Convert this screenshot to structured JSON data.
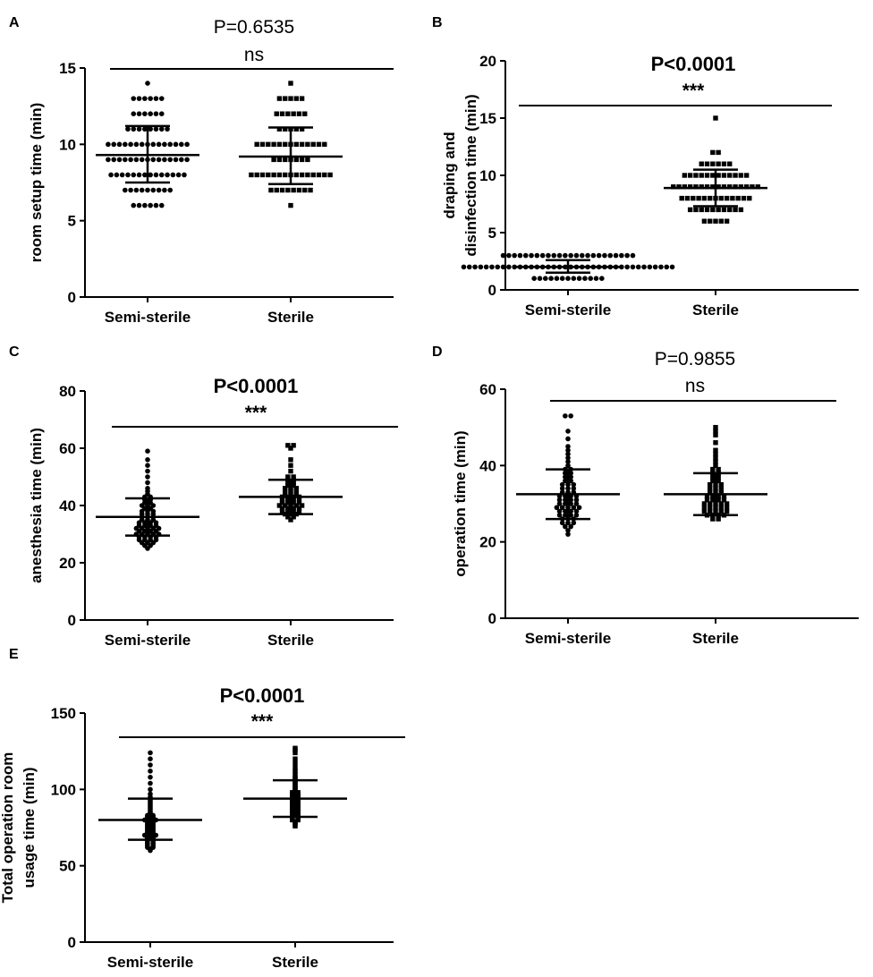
{
  "chart_data": [
    {
      "type": "scatter",
      "panel": "A",
      "ylabel_lines": [
        "room setup time (min)"
      ],
      "ylim": [
        0,
        15
      ],
      "yticks": [
        "0",
        "5",
        "10",
        "15"
      ],
      "categories": [
        "Semi-sterile",
        "Sterile"
      ],
      "p_value": "P=0.6535",
      "significance": "ns",
      "bold_annotation": false,
      "groups": [
        {
          "name": "Semi-sterile",
          "marker": "circle",
          "mean": 9.3,
          "sd_low": 7.5,
          "sd_high": 11.2,
          "values": [
            6,
            6,
            6,
            6,
            6,
            6,
            7,
            7,
            7,
            7,
            7,
            7,
            7,
            7,
            7,
            8,
            8,
            8,
            8,
            8,
            8,
            8,
            8,
            8,
            8,
            8,
            8,
            8,
            8,
            9,
            9,
            9,
            9,
            9,
            9,
            9,
            9,
            9,
            9,
            9,
            9,
            9,
            9,
            9,
            10,
            10,
            10,
            10,
            10,
            10,
            10,
            10,
            10,
            10,
            10,
            10,
            10,
            10,
            10,
            11,
            11,
            11,
            11,
            11,
            11,
            11,
            11,
            12,
            12,
            12,
            12,
            12,
            12,
            13,
            13,
            13,
            13,
            13,
            13,
            14
          ]
        },
        {
          "name": "Sterile",
          "marker": "square",
          "mean": 9.2,
          "sd_low": 7.4,
          "sd_high": 11.1,
          "values": [
            6,
            7,
            7,
            7,
            7,
            7,
            7,
            7,
            7,
            8,
            8,
            8,
            8,
            8,
            8,
            8,
            8,
            8,
            8,
            8,
            8,
            8,
            8,
            8,
            9,
            9,
            9,
            9,
            9,
            9,
            9,
            10,
            10,
            10,
            10,
            10,
            10,
            10,
            10,
            10,
            10,
            10,
            10,
            10,
            11,
            11,
            11,
            11,
            11,
            12,
            12,
            12,
            12,
            12,
            12,
            13,
            13,
            13,
            13,
            13,
            14
          ]
        }
      ]
    },
    {
      "type": "scatter",
      "panel": "B",
      "ylabel_lines": [
        "draping and",
        "disinfection time (min)"
      ],
      "ylim": [
        0,
        20
      ],
      "yticks": [
        "0",
        "5",
        "10",
        "15",
        "20"
      ],
      "categories": [
        "Semi-sterile",
        "Sterile"
      ],
      "p_value": "P<0.0001",
      "significance": "***",
      "bold_annotation": true,
      "groups": [
        {
          "name": "Semi-sterile",
          "marker": "circle",
          "mean": 2.0,
          "sd_low": 1.5,
          "sd_high": 2.6,
          "values": [
            1,
            1,
            1,
            1,
            1,
            1,
            1,
            1,
            1,
            1,
            1,
            1,
            1,
            2,
            2,
            2,
            2,
            2,
            2,
            2,
            2,
            2,
            2,
            2,
            2,
            2,
            2,
            2,
            2,
            2,
            2,
            2,
            2,
            2,
            2,
            2,
            2,
            2,
            2,
            2,
            2,
            2,
            2,
            2,
            2,
            2,
            2,
            2,
            2,
            2,
            2,
            3,
            3,
            3,
            3,
            3,
            3,
            3,
            3,
            3,
            3,
            3,
            3,
            3,
            3,
            3,
            3,
            3,
            3,
            3,
            3,
            3,
            3,
            3,
            3
          ]
        },
        {
          "name": "Sterile",
          "marker": "square",
          "mean": 8.9,
          "sd_low": 7.3,
          "sd_high": 10.5,
          "values": [
            6,
            6,
            6,
            6,
            6,
            7,
            7,
            7,
            7,
            7,
            7,
            7,
            7,
            7,
            7,
            8,
            8,
            8,
            8,
            8,
            8,
            8,
            8,
            8,
            8,
            8,
            8,
            8,
            9,
            9,
            9,
            9,
            9,
            9,
            9,
            9,
            9,
            9,
            9,
            9,
            9,
            9,
            9,
            9,
            10,
            10,
            10,
            10,
            10,
            10,
            10,
            10,
            10,
            10,
            10,
            10,
            11,
            11,
            11,
            11,
            11,
            11,
            12,
            12,
            15
          ]
        }
      ]
    },
    {
      "type": "scatter",
      "panel": "C",
      "ylabel_lines": [
        "anesthesia time (min)"
      ],
      "ylim": [
        0,
        80
      ],
      "yticks": [
        "0",
        "20",
        "40",
        "60",
        "80"
      ],
      "categories": [
        "Semi-sterile",
        "Sterile"
      ],
      "p_value": "P<0.0001",
      "significance": "***",
      "bold_annotation": true,
      "groups": [
        {
          "name": "Semi-sterile",
          "marker": "circle",
          "mean": 36,
          "sd_low": 29.5,
          "sd_high": 42.5,
          "values": [
            25,
            26,
            26,
            27,
            27,
            27,
            28,
            28,
            28,
            28,
            29,
            29,
            29,
            29,
            30,
            30,
            30,
            30,
            30,
            31,
            31,
            31,
            31,
            32,
            32,
            32,
            32,
            32,
            33,
            33,
            33,
            33,
            34,
            34,
            34,
            34,
            35,
            35,
            35,
            36,
            36,
            36,
            37,
            37,
            37,
            38,
            38,
            38,
            39,
            39,
            40,
            40,
            40,
            41,
            41,
            42,
            42,
            43,
            43,
            44,
            45,
            46,
            48,
            50,
            52,
            54,
            56,
            59
          ]
        },
        {
          "name": "Sterile",
          "marker": "square",
          "mean": 43,
          "sd_low": 37,
          "sd_high": 49,
          "values": [
            35,
            36,
            36,
            37,
            37,
            37,
            38,
            38,
            38,
            38,
            39,
            39,
            39,
            39,
            40,
            40,
            40,
            40,
            40,
            41,
            41,
            41,
            41,
            42,
            42,
            42,
            42,
            43,
            43,
            43,
            43,
            44,
            44,
            44,
            45,
            45,
            45,
            46,
            46,
            46,
            47,
            47,
            48,
            48,
            49,
            49,
            50,
            50,
            52,
            54,
            56,
            60,
            61,
            61
          ]
        }
      ]
    },
    {
      "type": "scatter",
      "panel": "D",
      "ylabel_lines": [
        "operation time (min)"
      ],
      "ylim": [
        0,
        60
      ],
      "yticks": [
        "0",
        "20",
        "40",
        "60"
      ],
      "categories": [
        "Semi-sterile",
        "Sterile"
      ],
      "p_value": "P=0.9855",
      "significance": "ns",
      "bold_annotation": false,
      "groups": [
        {
          "name": "Semi-sterile",
          "marker": "circle",
          "mean": 32.5,
          "sd_low": 26,
          "sd_high": 39,
          "values": [
            22,
            23,
            24,
            24,
            25,
            25,
            25,
            26,
            26,
            26,
            27,
            27,
            27,
            27,
            28,
            28,
            28,
            28,
            29,
            29,
            29,
            29,
            29,
            30,
            30,
            30,
            30,
            31,
            31,
            31,
            31,
            32,
            32,
            32,
            32,
            33,
            33,
            33,
            34,
            34,
            34,
            35,
            35,
            35,
            36,
            36,
            37,
            37,
            38,
            38,
            39,
            39,
            40,
            41,
            42,
            43,
            44,
            45,
            47,
            49,
            53,
            53
          ]
        },
        {
          "name": "Sterile",
          "marker": "square",
          "mean": 32.5,
          "sd_low": 27,
          "sd_high": 38,
          "values": [
            26,
            26,
            27,
            27,
            27,
            27,
            28,
            28,
            28,
            28,
            28,
            29,
            29,
            29,
            29,
            29,
            30,
            30,
            30,
            30,
            30,
            31,
            31,
            31,
            31,
            32,
            32,
            32,
            32,
            33,
            33,
            33,
            34,
            34,
            34,
            35,
            35,
            35,
            36,
            36,
            37,
            37,
            38,
            38,
            39,
            39,
            40,
            41,
            42,
            43,
            44,
            46,
            48,
            49,
            50
          ]
        }
      ]
    },
    {
      "type": "scatter",
      "panel": "E",
      "ylabel_lines": [
        "Total operation room",
        "usage time (min)"
      ],
      "ylim": [
        0,
        150
      ],
      "yticks": [
        "0",
        "50",
        "100",
        "150"
      ],
      "categories": [
        "Semi-sterile",
        "Sterile"
      ],
      "p_value": "P<0.0001",
      "significance": "***",
      "bold_annotation": true,
      "groups": [
        {
          "name": "Semi-sterile",
          "marker": "circle",
          "mean": 80,
          "sd_low": 67,
          "sd_high": 94,
          "values": [
            60,
            61,
            62,
            62,
            63,
            63,
            64,
            64,
            65,
            65,
            66,
            66,
            67,
            67,
            68,
            68,
            69,
            69,
            70,
            70,
            70,
            71,
            71,
            72,
            72,
            73,
            73,
            74,
            74,
            75,
            75,
            76,
            76,
            77,
            77,
            78,
            78,
            79,
            79,
            80,
            80,
            80,
            81,
            81,
            82,
            82,
            83,
            83,
            84,
            85,
            86,
            87,
            88,
            89,
            90,
            91,
            92,
            93,
            95,
            97,
            100,
            104,
            108,
            112,
            116,
            120,
            124
          ]
        },
        {
          "name": "Sterile",
          "marker": "square",
          "mean": 94,
          "sd_low": 82,
          "sd_high": 106,
          "values": [
            76,
            77,
            78,
            79,
            80,
            80,
            81,
            81,
            82,
            82,
            83,
            83,
            84,
            84,
            85,
            85,
            86,
            86,
            87,
            87,
            88,
            88,
            89,
            89,
            90,
            90,
            91,
            91,
            92,
            92,
            93,
            93,
            94,
            94,
            95,
            95,
            96,
            96,
            97,
            97,
            98,
            98,
            99,
            100,
            101,
            102,
            103,
            104,
            105,
            106,
            107,
            108,
            110,
            112,
            114,
            117,
            120,
            124,
            126,
            127
          ]
        }
      ]
    }
  ]
}
